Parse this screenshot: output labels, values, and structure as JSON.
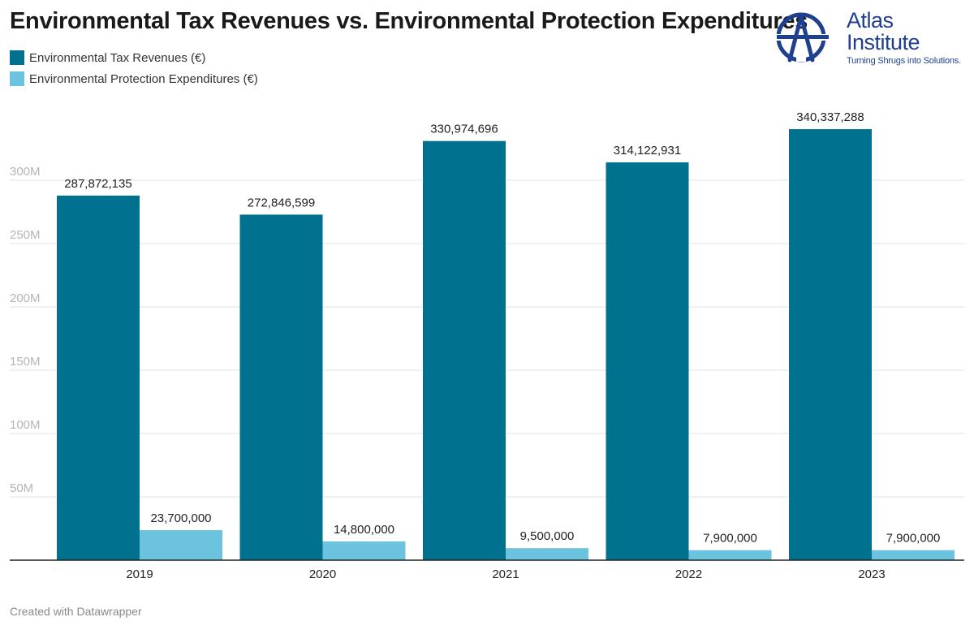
{
  "title": "Environmental Tax Revenues vs. Environmental Protection Expenditures",
  "logo": {
    "line1": "Atlas",
    "line2": "Institute",
    "tagline": "Turning Shrugs into Solutions."
  },
  "footer": "Created with Datawrapper",
  "colors": {
    "revenue": "#00728f",
    "expenditure": "#6cc3e0",
    "grid": "#e3e3e3",
    "axis": "#222222",
    "brand": "#1f3f8f"
  },
  "chart_data": {
    "type": "bar",
    "categories": [
      "2019",
      "2020",
      "2021",
      "2022",
      "2023"
    ],
    "series": [
      {
        "name": "Environmental Tax Revenues (€)",
        "values": [
          287872135,
          272846599,
          330974696,
          314122931,
          340337288
        ],
        "labels": [
          "287,872,135",
          "272,846,599",
          "330,974,696",
          "314,122,931",
          "340,337,288"
        ]
      },
      {
        "name": "Environmental Protection Expenditures (€)",
        "values": [
          23700000,
          14800000,
          9500000,
          7900000,
          7900000
        ],
        "labels": [
          "23,700,000",
          "14,800,000",
          "9,500,000",
          "7,900,000",
          "7,900,000"
        ]
      }
    ],
    "y_ticks": [
      50000000,
      100000000,
      150000000,
      200000000,
      250000000,
      300000000
    ],
    "y_tick_labels": [
      "50M",
      "100M",
      "150M",
      "200M",
      "250M",
      "300M"
    ],
    "ylim": [
      0,
      350000000
    ],
    "grid": true,
    "legend": "top-left"
  }
}
